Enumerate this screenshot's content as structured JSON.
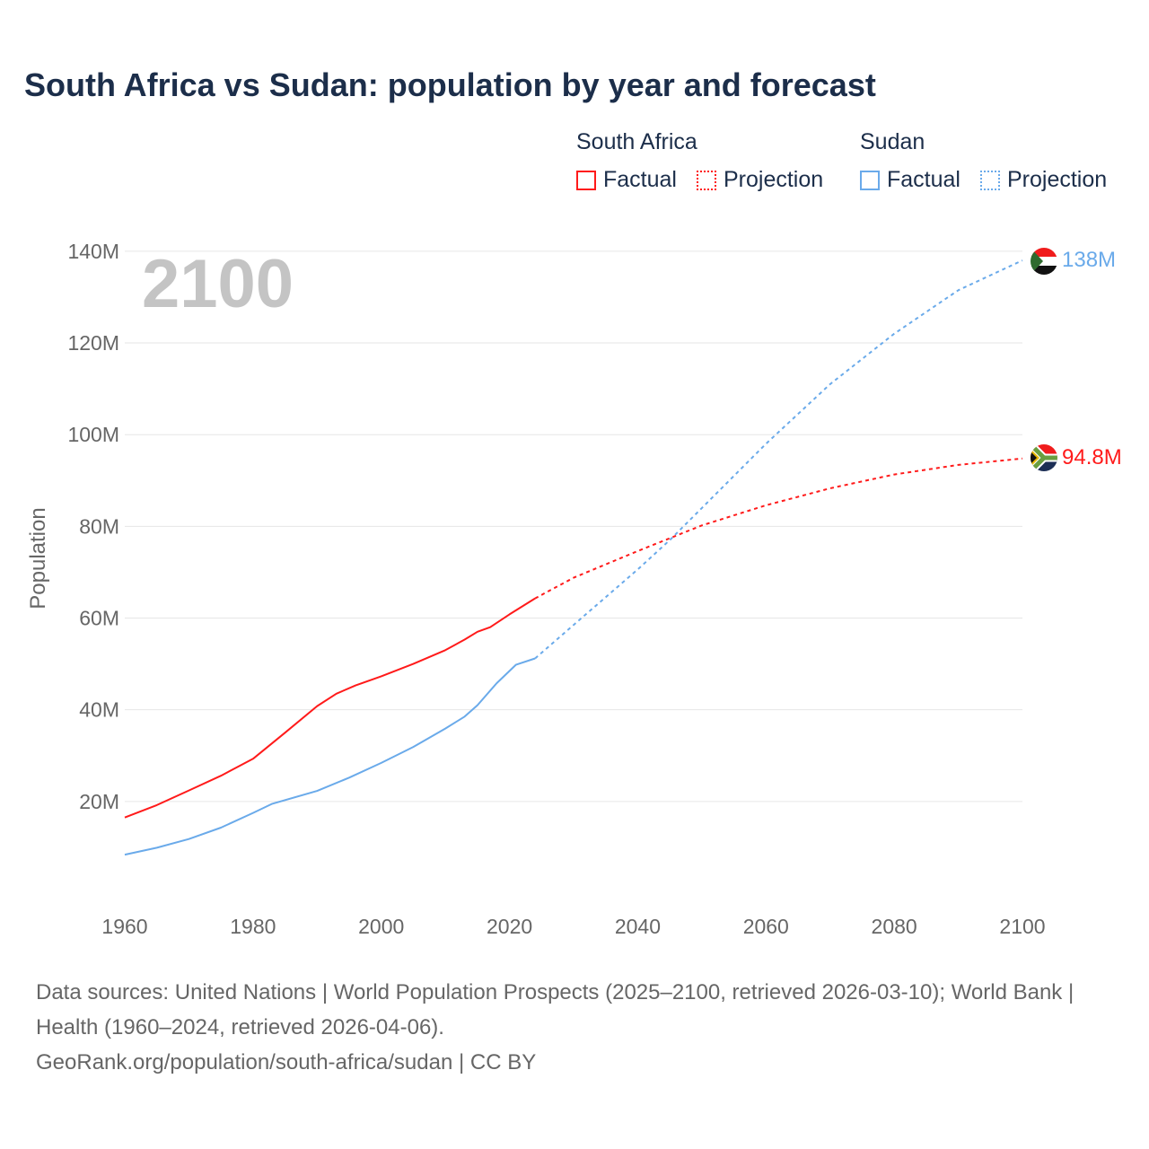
{
  "title": "South Africa vs Sudan: population by year and forecast",
  "legend": {
    "groups": [
      {
        "name": "South Africa",
        "factual": "Factual",
        "projection": "Projection",
        "color": "#ff1a1a"
      },
      {
        "name": "Sudan",
        "factual": "Factual",
        "projection": "Projection",
        "color": "#6aaaea"
      }
    ]
  },
  "year_label": "2100",
  "end_labels": {
    "sudan": "138M",
    "south_africa": "94.8M"
  },
  "source_lines": [
    "Data sources: United Nations | World Population Prospects (2025–2100, retrieved 2026-03-10); World Bank | Health (1960–2024, retrieved 2026-04-06).",
    "GeoRank.org/population/south-africa/sudan | CC BY"
  ],
  "chart_data": {
    "type": "line",
    "ylabel": "Population",
    "xlim": [
      1960,
      2100
    ],
    "ylim": [
      0,
      140
    ],
    "xticks": [
      "1960",
      "1980",
      "2000",
      "2020",
      "2040",
      "2060",
      "2080",
      "2100"
    ],
    "yticks": [
      "20M",
      "40M",
      "60M",
      "80M",
      "100M",
      "120M",
      "140M"
    ],
    "grid": true,
    "series": [
      {
        "name": "South Africa Factual",
        "color": "#ff1a1a",
        "dashed": false,
        "x": [
          1960,
          1965,
          1970,
          1975,
          1980,
          1985,
          1990,
          1993,
          1996,
          2000,
          2005,
          2010,
          2013,
          2015,
          2017,
          2020,
          2024
        ],
        "y": [
          16.5,
          19.2,
          22.4,
          25.6,
          29.3,
          35,
          40.8,
          43.5,
          45.3,
          47.3,
          50,
          53,
          55.3,
          57,
          58,
          60.8,
          64.3
        ]
      },
      {
        "name": "South Africa Projection",
        "color": "#ff1a1a",
        "dashed": true,
        "x": [
          2024,
          2030,
          2040,
          2050,
          2060,
          2070,
          2080,
          2090,
          2100
        ],
        "y": [
          64.3,
          68.8,
          74.6,
          80.2,
          84.6,
          88.3,
          91.3,
          93.4,
          94.8
        ]
      },
      {
        "name": "Sudan Factual",
        "color": "#6aaaea",
        "dashed": false,
        "x": [
          1960,
          1965,
          1970,
          1975,
          1980,
          1983,
          1990,
          1995,
          2000,
          2005,
          2010,
          2013,
          2015,
          2018,
          2021,
          2024
        ],
        "y": [
          8.4,
          9.9,
          11.8,
          14.3,
          17.5,
          19.5,
          22.3,
          25.2,
          28.4,
          31.9,
          35.9,
          38.5,
          41,
          45.8,
          49.8,
          51.2
        ]
      },
      {
        "name": "Sudan Projection",
        "color": "#6aaaea",
        "dashed": true,
        "x": [
          2024,
          2030,
          2040,
          2045,
          2050,
          2060,
          2070,
          2080,
          2090,
          2100
        ],
        "y": [
          51.2,
          58.5,
          70.6,
          77,
          84,
          98,
          111,
          122,
          131.5,
          138
        ]
      }
    ]
  }
}
